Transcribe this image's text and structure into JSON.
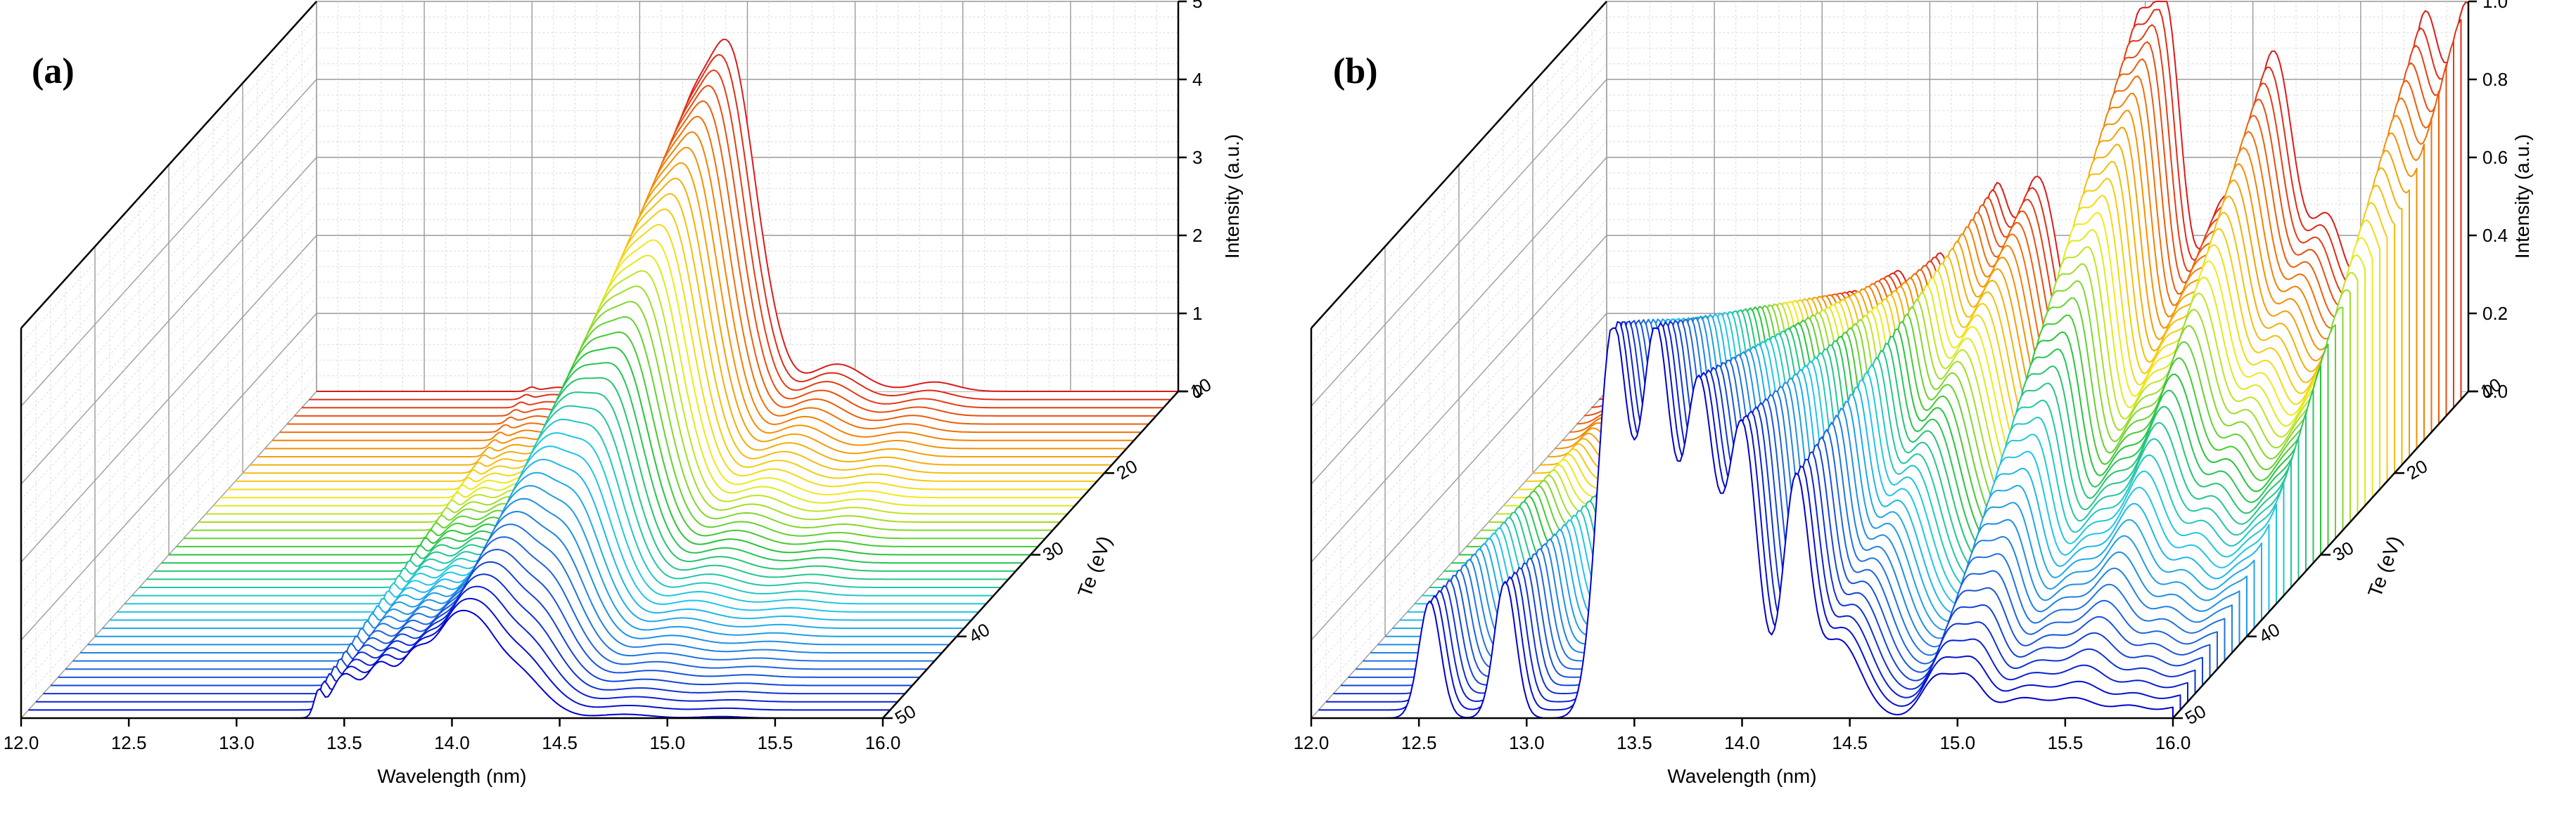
{
  "chart_data": [
    {
      "panel_label": "(a)",
      "type": "line",
      "style": "3d-waterfall",
      "xlabel": "Wavelength (nm)",
      "ylabel": "Te (eV)",
      "zlabel": "Intensity (a.u.)",
      "xlim": [
        12.0,
        16.0
      ],
      "ylim": [
        10,
        50
      ],
      "zlim": [
        0,
        5
      ],
      "x_ticks": [
        "12.0",
        "12.5",
        "13.0",
        "13.5",
        "14.0",
        "14.5",
        "15.0",
        "15.5",
        "16.0"
      ],
      "y_ticks": [
        "10",
        "20",
        "30",
        "40",
        "50"
      ],
      "z_ticks": [
        "0",
        "1",
        "2",
        "3",
        "4",
        "5"
      ],
      "grid": true,
      "series_count": 41,
      "series_color_scale": [
        "#0000cc",
        "#1e6fe0",
        "#1ec8ee",
        "#27c43a",
        "#f2ee1a",
        "#f58b00",
        "#dc1a1a"
      ],
      "spectral_peaks": [
        {
          "center_nm": 13.38,
          "width_nm": 0.02,
          "amplitude": [
            0.3,
            0.05
          ]
        },
        {
          "center_nm": 13.5,
          "width_nm": 0.06,
          "amplitude": [
            0.55,
            0.05
          ]
        },
        {
          "center_nm": 13.66,
          "width_nm": 0.06,
          "amplitude": [
            0.65,
            0.05
          ]
        },
        {
          "center_nm": 13.82,
          "width_nm": 0.07,
          "amplitude": [
            0.75,
            0.05
          ]
        },
        {
          "center_nm": 13.98,
          "width_nm": 0.08,
          "amplitude": [
            0.9,
            1.6
          ]
        },
        {
          "center_nm": 14.12,
          "width_nm": 0.09,
          "amplitude": [
            1.0,
            2.7
          ]
        },
        {
          "center_nm": 14.3,
          "width_nm": 0.1,
          "amplitude": [
            0.55,
            3.9
          ]
        },
        {
          "center_nm": 14.45,
          "width_nm": 0.09,
          "amplitude": [
            0.1,
            0.8
          ]
        },
        {
          "center_nm": 14.8,
          "width_nm": 0.12,
          "amplitude": [
            0.05,
            0.35
          ]
        },
        {
          "center_nm": 15.25,
          "width_nm": 0.1,
          "amplitude": [
            0.02,
            0.12
          ]
        }
      ]
    },
    {
      "panel_label": "(b)",
      "type": "line",
      "style": "3d-waterfall",
      "xlabel": "Wavelength (nm)",
      "ylabel": "Te (eV)",
      "zlabel": "Intensity (a.u.)",
      "xlim": [
        12.0,
        16.0
      ],
      "ylim": [
        10,
        50
      ],
      "zlim": [
        0.0,
        1.0
      ],
      "x_ticks": [
        "12.0",
        "12.5",
        "13.0",
        "13.5",
        "14.0",
        "14.5",
        "15.0",
        "15.5",
        "16.0"
      ],
      "y_ticks": [
        "10",
        "20",
        "30",
        "40",
        "50"
      ],
      "z_ticks": [
        "0.0",
        "0.2",
        "0.4",
        "0.6",
        "0.8",
        "1.0"
      ],
      "grid": true,
      "series_count": 41,
      "series_color_scale": [
        "#0000cc",
        "#1e6fe0",
        "#1ec8ee",
        "#27c43a",
        "#f2ee1a",
        "#f58b00",
        "#dc1a1a"
      ],
      "spectral_peaks": [
        {
          "center_nm": 12.55,
          "width_nm": 0.05,
          "amplitude": [
            0.3,
            0.0
          ]
        },
        {
          "center_nm": 12.9,
          "width_nm": 0.05,
          "amplitude": [
            0.35,
            0.0
          ]
        },
        {
          "center_nm": 13.4,
          "width_nm": 0.07,
          "amplitude": [
            1.0,
            0.2
          ]
        },
        {
          "center_nm": 13.6,
          "width_nm": 0.07,
          "amplitude": [
            0.98,
            0.25
          ]
        },
        {
          "center_nm": 13.8,
          "width_nm": 0.07,
          "amplitude": [
            0.85,
            0.3
          ]
        },
        {
          "center_nm": 14.0,
          "width_nm": 0.07,
          "amplitude": [
            0.75,
            0.35
          ]
        },
        {
          "center_nm": 14.25,
          "width_nm": 0.06,
          "amplitude": [
            0.6,
            0.45
          ]
        },
        {
          "center_nm": 14.45,
          "width_nm": 0.1,
          "amplitude": [
            0.2,
            0.55
          ]
        },
        {
          "center_nm": 14.9,
          "width_nm": 0.07,
          "amplitude": [
            0.1,
            0.85
          ]
        },
        {
          "center_nm": 15.05,
          "width_nm": 0.07,
          "amplitude": [
            0.1,
            0.9
          ]
        },
        {
          "center_nm": 15.3,
          "width_nm": 0.1,
          "amplitude": [
            0.05,
            0.45
          ]
        },
        {
          "center_nm": 15.55,
          "width_nm": 0.1,
          "amplitude": [
            0.05,
            0.85
          ]
        },
        {
          "center_nm": 15.8,
          "width_nm": 0.08,
          "amplitude": [
            0.03,
            0.4
          ]
        },
        {
          "center_nm": 16.05,
          "width_nm": 0.1,
          "amplitude": [
            0.03,
            0.4
          ]
        },
        {
          "center_nm": 16.25,
          "width_nm": 0.08,
          "amplitude": [
            0.02,
            0.88
          ]
        },
        {
          "center_nm": 16.45,
          "width_nm": 0.08,
          "amplitude": [
            0.02,
            0.95
          ]
        },
        {
          "center_nm": 16.6,
          "width_nm": 0.05,
          "amplitude": [
            0.02,
            0.6
          ]
        }
      ]
    }
  ]
}
